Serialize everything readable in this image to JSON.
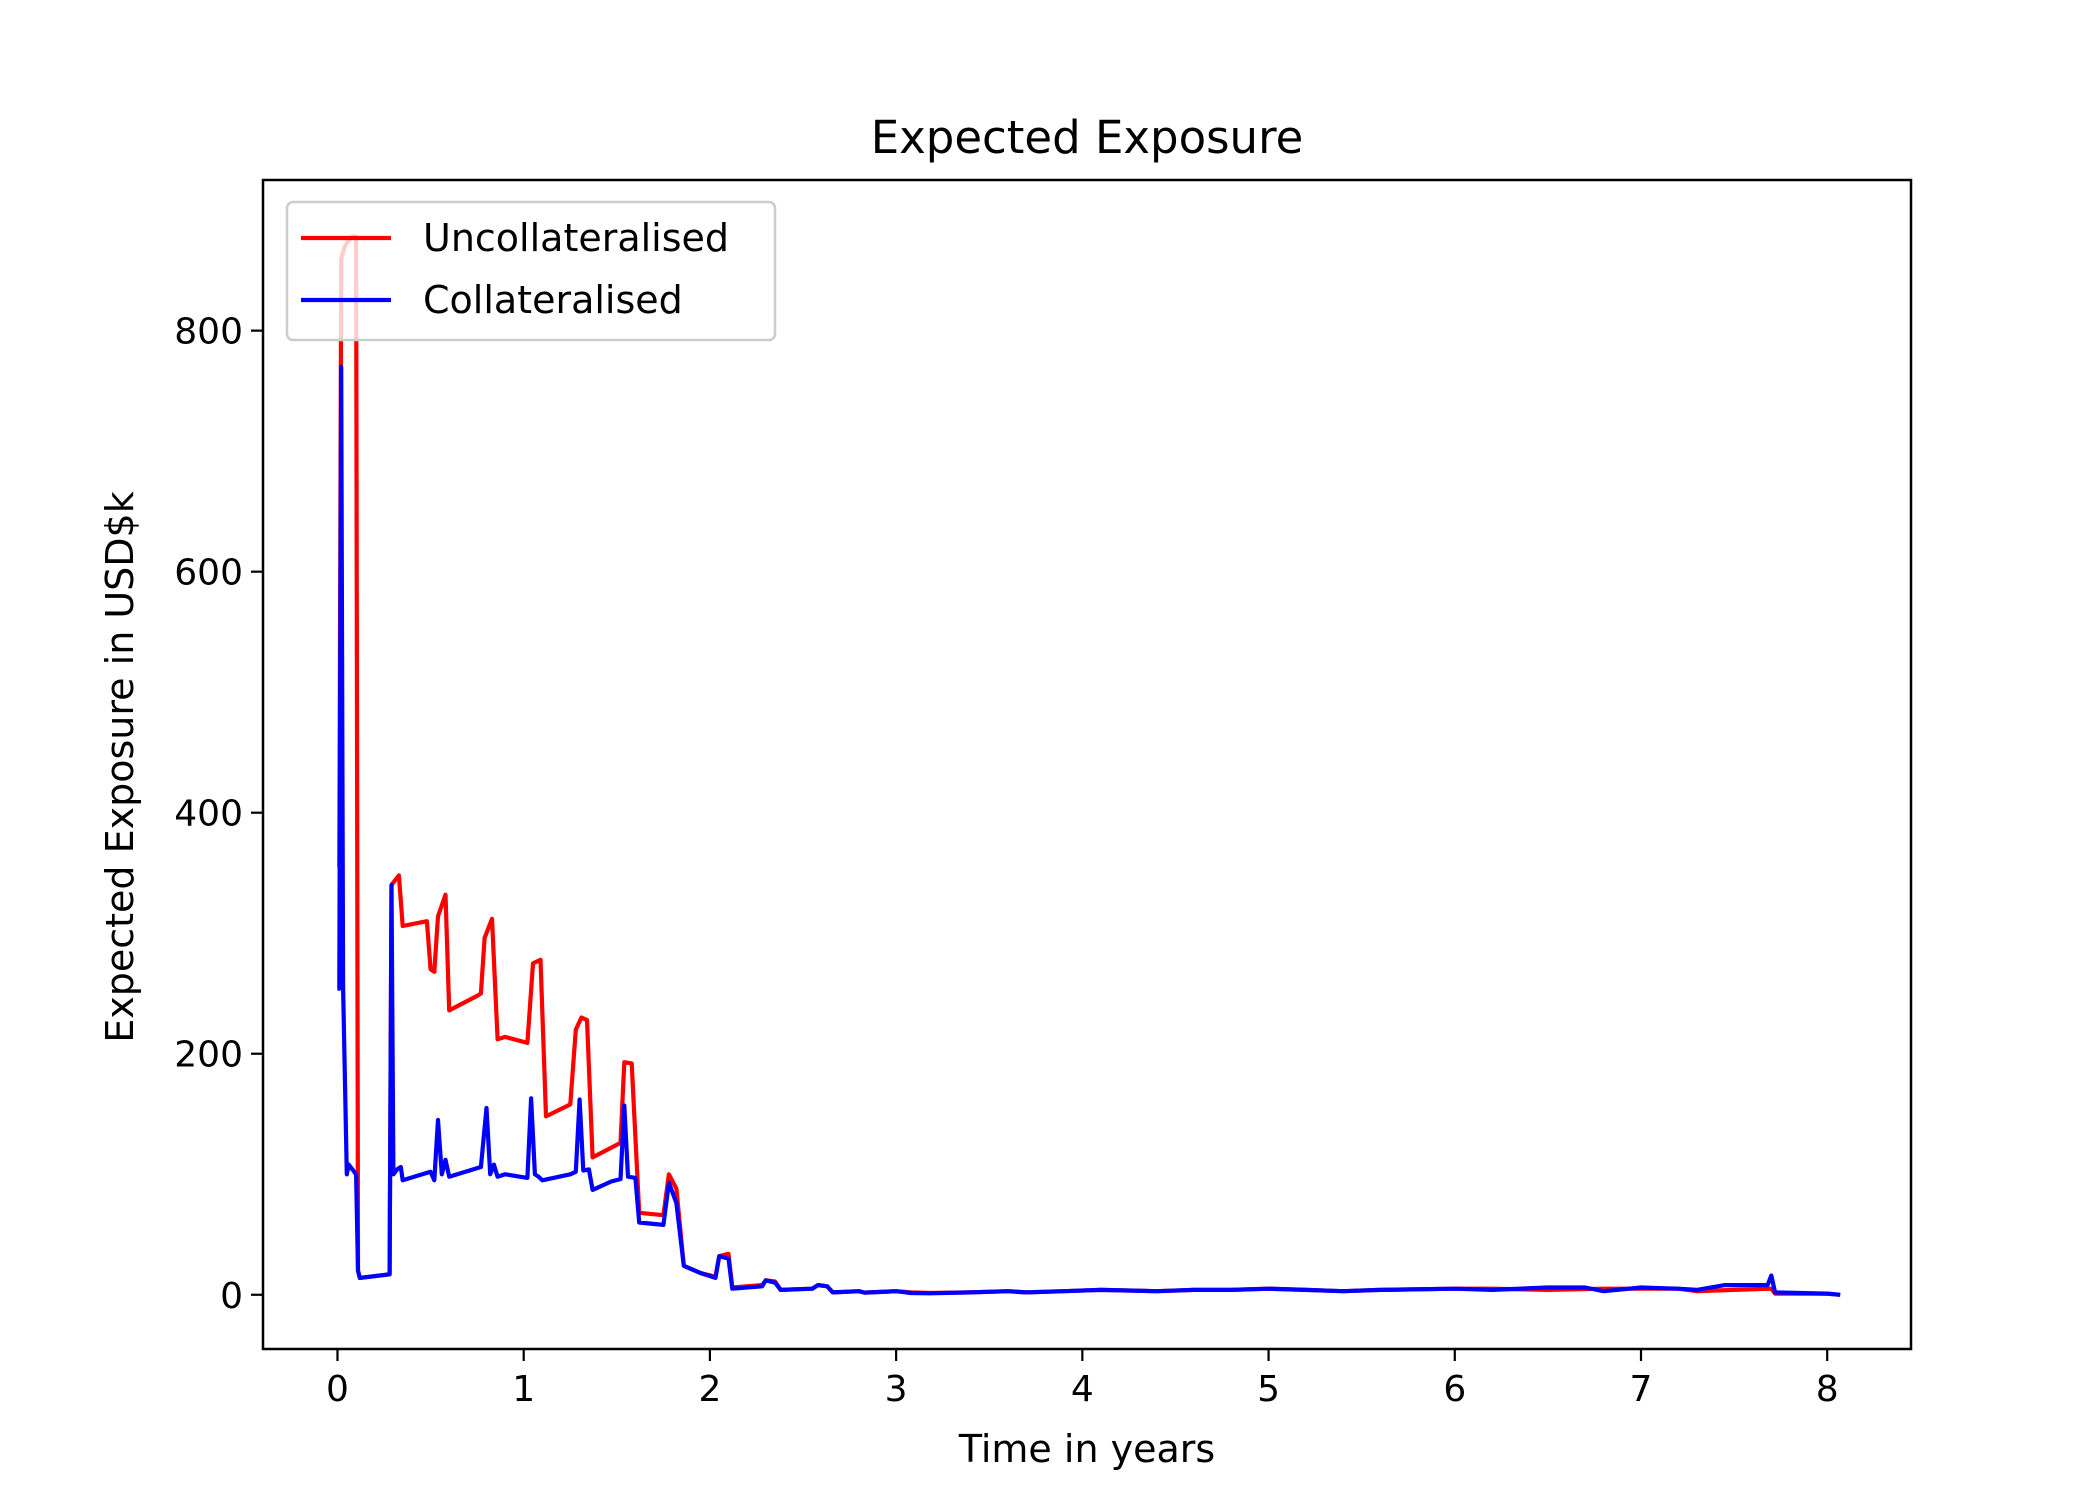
{
  "chart_data": {
    "type": "line",
    "title": "Expected Exposure",
    "xlabel": "Time in years",
    "ylabel": "Expected Exposure in USD$k",
    "xlim": [
      -0.4,
      8.45
    ],
    "ylim": [
      -45,
      925
    ],
    "xticks": [
      0,
      1,
      2,
      3,
      4,
      5,
      6,
      7,
      8
    ],
    "yticks": [
      0,
      200,
      400,
      600,
      800
    ],
    "grid": false,
    "legend_position": "top-left",
    "series": [
      {
        "name": "Uncollateralised",
        "color": "#ff0000",
        "points": [
          [
            0.0,
            355
          ],
          [
            0.01,
            355
          ],
          [
            0.02,
            860
          ],
          [
            0.04,
            870
          ],
          [
            0.06,
            875
          ],
          [
            0.08,
            878
          ],
          [
            0.1,
            878
          ],
          [
            0.11,
            20
          ],
          [
            0.12,
            14
          ],
          [
            0.28,
            17
          ],
          [
            0.29,
            340
          ],
          [
            0.33,
            348
          ],
          [
            0.35,
            306
          ],
          [
            0.48,
            310
          ],
          [
            0.5,
            270
          ],
          [
            0.52,
            268
          ],
          [
            0.54,
            314
          ],
          [
            0.58,
            332
          ],
          [
            0.6,
            236
          ],
          [
            0.75,
            248
          ],
          [
            0.77,
            250
          ],
          [
            0.79,
            296
          ],
          [
            0.83,
            312
          ],
          [
            0.86,
            212
          ],
          [
            0.9,
            214
          ],
          [
            1.02,
            209
          ],
          [
            1.05,
            275
          ],
          [
            1.09,
            278
          ],
          [
            1.12,
            148
          ],
          [
            1.25,
            158
          ],
          [
            1.28,
            220
          ],
          [
            1.31,
            230
          ],
          [
            1.34,
            228
          ],
          [
            1.37,
            114
          ],
          [
            1.52,
            126
          ],
          [
            1.54,
            193
          ],
          [
            1.58,
            192
          ],
          [
            1.62,
            68
          ],
          [
            1.75,
            66
          ],
          [
            1.78,
            100
          ],
          [
            1.82,
            88
          ],
          [
            1.86,
            24
          ],
          [
            1.95,
            18
          ],
          [
            2.03,
            15
          ],
          [
            2.05,
            32
          ],
          [
            2.1,
            34
          ],
          [
            2.12,
            6
          ],
          [
            2.28,
            8
          ],
          [
            2.3,
            12
          ],
          [
            2.35,
            11
          ],
          [
            2.38,
            4
          ],
          [
            2.55,
            5
          ],
          [
            2.58,
            8
          ],
          [
            2.63,
            7
          ],
          [
            2.66,
            2
          ],
          [
            2.8,
            3
          ],
          [
            2.83,
            1.8
          ],
          [
            3.0,
            3
          ],
          [
            3.08,
            2
          ],
          [
            3.18,
            1.5
          ],
          [
            3.4,
            2
          ],
          [
            3.6,
            3
          ],
          [
            3.7,
            2
          ],
          [
            3.9,
            3
          ],
          [
            4.1,
            4
          ],
          [
            4.4,
            3
          ],
          [
            4.6,
            4
          ],
          [
            4.8,
            4
          ],
          [
            5.0,
            5
          ],
          [
            5.2,
            4
          ],
          [
            5.4,
            3
          ],
          [
            5.6,
            4
          ],
          [
            6.0,
            5
          ],
          [
            6.2,
            5
          ],
          [
            6.5,
            4
          ],
          [
            6.8,
            5
          ],
          [
            7.0,
            5
          ],
          [
            7.2,
            5
          ],
          [
            7.3,
            3
          ],
          [
            7.5,
            4
          ],
          [
            7.7,
            5
          ],
          [
            7.72,
            1
          ],
          [
            8.0,
            1
          ],
          [
            8.07,
            0
          ]
        ]
      },
      {
        "name": "Collateralised",
        "color": "#0000ff",
        "points": [
          [
            0.0,
            254
          ],
          [
            0.01,
            254
          ],
          [
            0.02,
            770
          ],
          [
            0.03,
            255
          ],
          [
            0.05,
            100
          ],
          [
            0.06,
            108
          ],
          [
            0.08,
            104
          ],
          [
            0.1,
            100
          ],
          [
            0.11,
            20
          ],
          [
            0.12,
            14
          ],
          [
            0.28,
            17
          ],
          [
            0.29,
            340
          ],
          [
            0.3,
            100
          ],
          [
            0.32,
            104
          ],
          [
            0.34,
            106
          ],
          [
            0.35,
            95
          ],
          [
            0.5,
            102
          ],
          [
            0.52,
            95
          ],
          [
            0.54,
            145
          ],
          [
            0.56,
            100
          ],
          [
            0.58,
            112
          ],
          [
            0.6,
            98
          ],
          [
            0.77,
            106
          ],
          [
            0.8,
            155
          ],
          [
            0.82,
            100
          ],
          [
            0.84,
            108
          ],
          [
            0.86,
            98
          ],
          [
            0.9,
            100
          ],
          [
            1.02,
            97
          ],
          [
            1.04,
            163
          ],
          [
            1.06,
            100
          ],
          [
            1.08,
            98
          ],
          [
            1.1,
            95
          ],
          [
            1.25,
            100
          ],
          [
            1.28,
            102
          ],
          [
            1.3,
            162
          ],
          [
            1.32,
            103
          ],
          [
            1.35,
            104
          ],
          [
            1.37,
            87
          ],
          [
            1.47,
            94
          ],
          [
            1.52,
            96
          ],
          [
            1.54,
            157
          ],
          [
            1.56,
            98
          ],
          [
            1.6,
            97
          ],
          [
            1.62,
            60
          ],
          [
            1.75,
            58
          ],
          [
            1.78,
            93
          ],
          [
            1.82,
            76
          ],
          [
            1.86,
            24
          ],
          [
            1.95,
            18
          ],
          [
            2.03,
            14
          ],
          [
            2.05,
            32
          ],
          [
            2.1,
            30
          ],
          [
            2.12,
            5
          ],
          [
            2.28,
            7
          ],
          [
            2.3,
            12
          ],
          [
            2.35,
            10
          ],
          [
            2.38,
            4
          ],
          [
            2.55,
            5
          ],
          [
            2.58,
            8
          ],
          [
            2.63,
            7
          ],
          [
            2.66,
            2
          ],
          [
            2.8,
            3
          ],
          [
            2.83,
            1.8
          ],
          [
            3.0,
            3
          ],
          [
            3.08,
            1.5
          ],
          [
            3.18,
            1.2
          ],
          [
            3.4,
            2
          ],
          [
            3.6,
            3
          ],
          [
            3.7,
            2
          ],
          [
            3.9,
            3
          ],
          [
            4.1,
            4
          ],
          [
            4.4,
            3
          ],
          [
            4.6,
            4
          ],
          [
            4.8,
            4
          ],
          [
            5.0,
            5
          ],
          [
            5.2,
            4
          ],
          [
            5.4,
            3
          ],
          [
            5.6,
            4
          ],
          [
            6.0,
            5
          ],
          [
            6.2,
            4
          ],
          [
            6.5,
            6
          ],
          [
            6.7,
            6
          ],
          [
            6.8,
            3
          ],
          [
            7.0,
            6
          ],
          [
            7.2,
            5
          ],
          [
            7.3,
            4
          ],
          [
            7.45,
            8
          ],
          [
            7.68,
            8
          ],
          [
            7.7,
            16
          ],
          [
            7.72,
            2
          ],
          [
            8.0,
            1
          ],
          [
            8.07,
            0
          ]
        ]
      }
    ]
  }
}
